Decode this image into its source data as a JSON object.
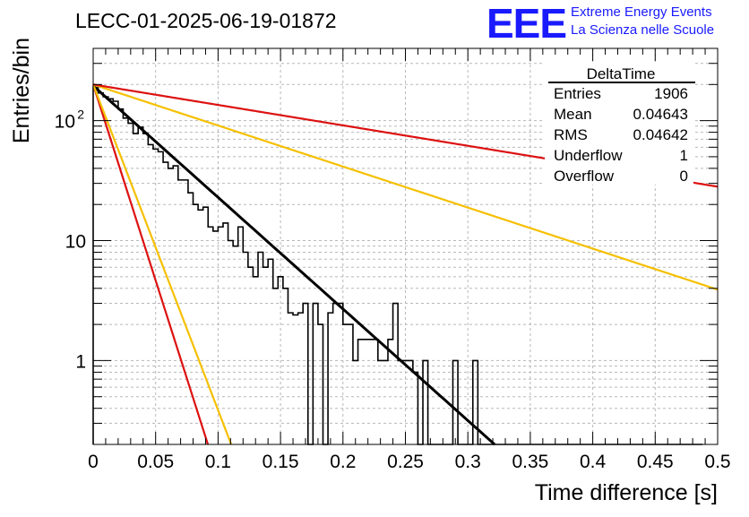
{
  "title": "LECC-01-2025-06-19-01872",
  "logo": {
    "mark": "EEE",
    "line1": "Extreme Energy Events",
    "line2": "La Scienza nelle Scuole",
    "color": "#1a1aff"
  },
  "stats": {
    "name": "DeltaTime",
    "rows": [
      {
        "label": "Entries",
        "value": "1906"
      },
      {
        "label": "Mean",
        "value": "0.04643"
      },
      {
        "label": "RMS",
        "value": "0.04642"
      },
      {
        "label": "Underflow",
        "value": "1"
      },
      {
        "label": "Overflow",
        "value": "0"
      }
    ]
  },
  "chart_data": {
    "type": "line",
    "xlabel": "Time difference [s]",
    "ylabel": "Entries/bin",
    "xlim": [
      0,
      0.5
    ],
    "ylim": [
      0.2,
      400
    ],
    "ylog": true,
    "grid": true,
    "x_ticks": [
      {
        "v": 0,
        "label": "0"
      },
      {
        "v": 0.05,
        "label": "0.05"
      },
      {
        "v": 0.1,
        "label": "0.1"
      },
      {
        "v": 0.15,
        "label": "0.15"
      },
      {
        "v": 0.2,
        "label": "0.2"
      },
      {
        "v": 0.25,
        "label": "0.25"
      },
      {
        "v": 0.3,
        "label": "0.3"
      },
      {
        "v": 0.35,
        "label": "0.35"
      },
      {
        "v": 0.4,
        "label": "0.4"
      },
      {
        "v": 0.45,
        "label": "0.45"
      },
      {
        "v": 0.5,
        "label": "0.5"
      }
    ],
    "y_ticks": [
      {
        "v": 1,
        "base": "1",
        "exp": ""
      },
      {
        "v": 10,
        "base": "10",
        "exp": ""
      },
      {
        "v": 100,
        "base": "10",
        "exp": "2"
      }
    ],
    "histogram": {
      "bin_width": 0.004,
      "x0": 0,
      "color": "#000000",
      "values": [
        188,
        170,
        158,
        152,
        145,
        125,
        105,
        95,
        78,
        88,
        78,
        63,
        58,
        55,
        45,
        40,
        42,
        32,
        32,
        25,
        20,
        18,
        19,
        13,
        12,
        13,
        14,
        10,
        9,
        13,
        8,
        6,
        5,
        8,
        6,
        7,
        4,
        5,
        4,
        2.5,
        2.4,
        2.5,
        3,
        0.1,
        3,
        2,
        0.1,
        2.5,
        3,
        3,
        2,
        2,
        1,
        1.5,
        1.5,
        1.5,
        1.5,
        1,
        1,
        1.5,
        3,
        1,
        1,
        1,
        0.8,
        0.1,
        1,
        0.1,
        0.1,
        0.1,
        0.1,
        0.1,
        1,
        0.1,
        0.1,
        0.1,
        1,
        0.1,
        0.1,
        0.1,
        0.1,
        0.1,
        0.1,
        0.1,
        0.1,
        0.1,
        0.1,
        0.1,
        0.1,
        0.1,
        0.1,
        0.1,
        0.1,
        0.1,
        0.1,
        0.1,
        0.1,
        0.1,
        0.1,
        0.1,
        0.1,
        0.1,
        0.1,
        0.1,
        0.1,
        0.1,
        0.1,
        0.1,
        0.1,
        0.1,
        0.1,
        0.1,
        0.1,
        0.1,
        0.1,
        0.1,
        0.1,
        0.1,
        0.1,
        0.1,
        0.1,
        0.1
      ]
    },
    "series": [
      {
        "color": "#000000",
        "A": 195,
        "tau": 0.0467
      },
      {
        "color": "#dd1111",
        "A": 200,
        "tau": 0.0133
      },
      {
        "color": "#f5c000",
        "A": 200,
        "tau": 0.016
      },
      {
        "color": "#f5c000",
        "A": 200,
        "tau": 0.127
      },
      {
        "color": "#dd1111",
        "A": 200,
        "tau": 0.255
      }
    ]
  }
}
